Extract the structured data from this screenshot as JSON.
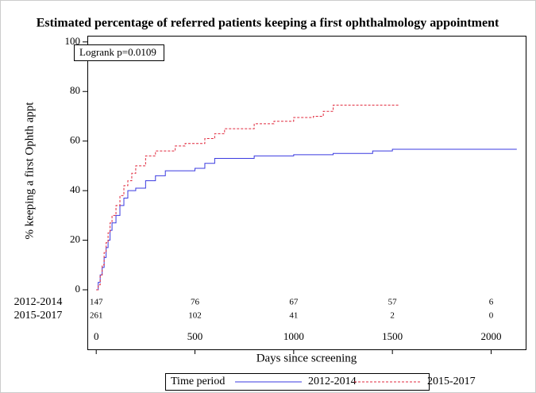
{
  "chart_data": {
    "type": "step",
    "title": "Estimated percentage of referred patients keeping a first ophthalmology appointment",
    "xlabel": "Days since screening",
    "ylabel": "% keeping a first Ophth appt",
    "annotation": "Logrank p=0.0109",
    "legend_title": "Time period",
    "legend_position": "bottom",
    "xlim": [
      -45,
      2175
    ],
    "xticks": [
      0,
      500,
      1000,
      1500,
      2000
    ],
    "ylim": [
      0,
      102.5
    ],
    "yticks": [
      0,
      20,
      40,
      60,
      80,
      100
    ],
    "at_risk_x": [
      0,
      500,
      1000,
      1500,
      2000
    ],
    "series": [
      {
        "name": "2012-2014",
        "color": "#3a3ae0",
        "dash": "none",
        "x": [
          0,
          10,
          20,
          30,
          40,
          50,
          60,
          70,
          80,
          100,
          120,
          140,
          160,
          200,
          250,
          300,
          350,
          500,
          550,
          600,
          800,
          1000,
          1200,
          1400,
          1500,
          2130
        ],
        "values": [
          0,
          3,
          6,
          9,
          13,
          17,
          20,
          24,
          27,
          30,
          34,
          37,
          40,
          41,
          44,
          46,
          48,
          49,
          51,
          53,
          54,
          54.5,
          55,
          56,
          56.7,
          56.7
        ],
        "at_risk": [
          147,
          76,
          67,
          57,
          6
        ]
      },
      {
        "name": "2015-2017",
        "color": "#e0283c",
        "dash": "3 2",
        "x": [
          0,
          10,
          20,
          30,
          40,
          50,
          60,
          70,
          80,
          100,
          120,
          140,
          160,
          180,
          200,
          250,
          300,
          400,
          450,
          550,
          600,
          650,
          800,
          900,
          1000,
          1100,
          1150,
          1200,
          1530
        ],
        "values": [
          0,
          2,
          6,
          10,
          15,
          19,
          23,
          27,
          30,
          34,
          38,
          42,
          44,
          47,
          50,
          54,
          56,
          58,
          59,
          61,
          63,
          65,
          67,
          68,
          69.5,
          70,
          72,
          74.5,
          74.5
        ],
        "at_risk": [
          261,
          102,
          41,
          2,
          0
        ]
      }
    ]
  }
}
